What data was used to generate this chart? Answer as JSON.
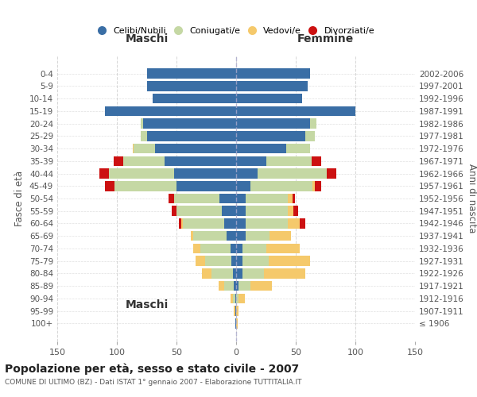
{
  "age_groups": [
    "100+",
    "95-99",
    "90-94",
    "85-89",
    "80-84",
    "75-79",
    "70-74",
    "65-69",
    "60-64",
    "55-59",
    "50-54",
    "45-49",
    "40-44",
    "35-39",
    "30-34",
    "25-29",
    "20-24",
    "15-19",
    "10-14",
    "5-9",
    "0-4"
  ],
  "birth_years": [
    "≤ 1906",
    "1907-1911",
    "1912-1916",
    "1917-1921",
    "1922-1926",
    "1927-1931",
    "1932-1936",
    "1937-1941",
    "1942-1946",
    "1947-1951",
    "1952-1956",
    "1957-1961",
    "1962-1966",
    "1967-1971",
    "1972-1976",
    "1977-1981",
    "1982-1986",
    "1987-1991",
    "1992-1996",
    "1997-2001",
    "2002-2006"
  ],
  "maschi": {
    "celibi": [
      1,
      1,
      1,
      2,
      3,
      4,
      5,
      8,
      10,
      12,
      14,
      50,
      52,
      60,
      68,
      75,
      78,
      110,
      70,
      75,
      75
    ],
    "coniugati": [
      0,
      0,
      2,
      8,
      18,
      22,
      25,
      28,
      35,
      38,
      38,
      52,
      55,
      35,
      18,
      5,
      2,
      0,
      0,
      0,
      0
    ],
    "vedovi": [
      0,
      1,
      2,
      5,
      8,
      8,
      6,
      2,
      1,
      0,
      0,
      0,
      0,
      0,
      1,
      0,
      0,
      0,
      0,
      0,
      0
    ],
    "divorziati": [
      0,
      0,
      0,
      0,
      0,
      0,
      0,
      0,
      2,
      4,
      5,
      8,
      8,
      8,
      0,
      0,
      0,
      0,
      0,
      0,
      0
    ]
  },
  "femmine": {
    "nubili": [
      0,
      0,
      0,
      2,
      5,
      5,
      5,
      8,
      8,
      8,
      8,
      12,
      18,
      25,
      42,
      58,
      62,
      100,
      55,
      60,
      62
    ],
    "coniugate": [
      0,
      0,
      2,
      10,
      18,
      22,
      20,
      20,
      35,
      35,
      35,
      52,
      58,
      38,
      20,
      8,
      5,
      0,
      0,
      0,
      0
    ],
    "vedove": [
      1,
      2,
      5,
      18,
      35,
      35,
      28,
      18,
      10,
      5,
      4,
      2,
      0,
      0,
      0,
      0,
      0,
      0,
      0,
      0,
      0
    ],
    "divorziate": [
      0,
      0,
      0,
      0,
      0,
      0,
      0,
      0,
      5,
      4,
      2,
      5,
      8,
      8,
      0,
      0,
      0,
      0,
      0,
      0,
      0
    ]
  },
  "colors": {
    "celibi": "#3A6EA5",
    "coniugati": "#C5D8A4",
    "vedovi": "#F5C96B",
    "divorziati": "#CC1111"
  },
  "legend_labels": [
    "Celibi/Nubili",
    "Coniugati/e",
    "Vedovi/e",
    "Divorziati/e"
  ],
  "title": "Popolazione per età, sesso e stato civile - 2007",
  "subtitle": "COMUNE DI ULTIMO (BZ) - Dati ISTAT 1° gennaio 2007 - Elaborazione TUTTITALIA.IT",
  "xlabel_left": "Maschi",
  "xlabel_right": "Femmine",
  "ylabel_left": "Fasce di età",
  "ylabel_right": "Anni di nascita",
  "xlim": 150,
  "bg_color": "#ffffff",
  "grid_color": "#cccccc"
}
